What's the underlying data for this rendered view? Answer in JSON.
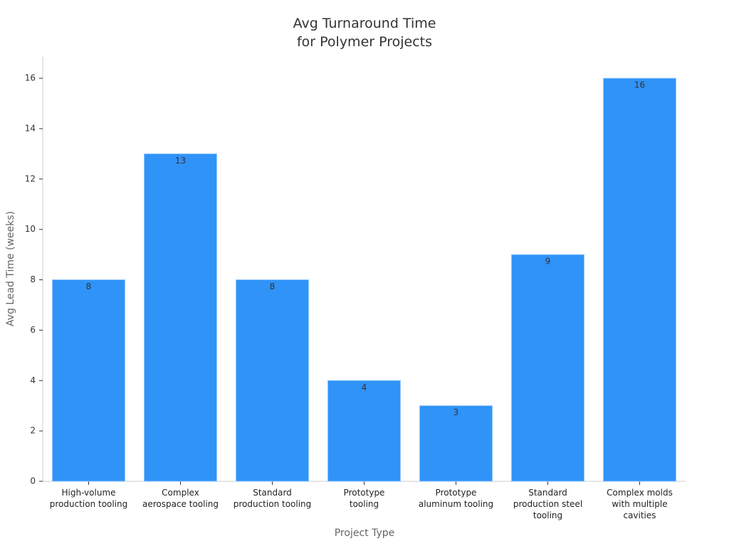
{
  "chart_data": {
    "type": "bar",
    "title": "Avg Turnaround Time\nfor Polymer Projects",
    "x_label": "Project Type",
    "y_label": "Avg Lead Time (weeks)",
    "categories": [
      "High-volume\nproduction tooling",
      "Complex\naerospace tooling",
      "Standard\nproduction tooling",
      "Prototype\ntooling",
      "Prototype\naluminum tooling",
      "Standard\nproduction steel\ntooling",
      "Complex molds\nwith multiple\ncavities"
    ],
    "values": [
      8,
      13,
      8,
      4,
      3,
      9,
      16
    ],
    "color": "#2f93f8",
    "ylim": [
      0,
      16.85
    ],
    "yticks": [
      0,
      2,
      4,
      6,
      8,
      10,
      12,
      14,
      16
    ],
    "grid": false
  }
}
